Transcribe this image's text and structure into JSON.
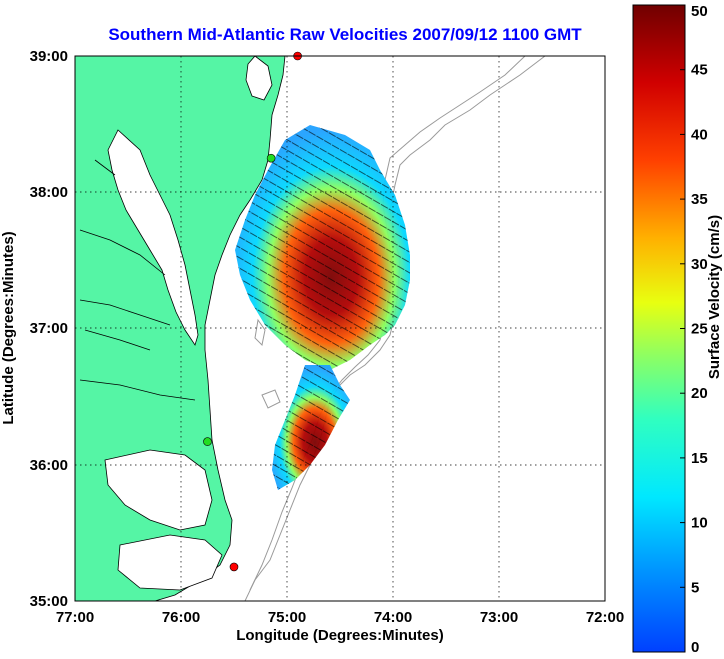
{
  "title": "Southern Mid-Atlantic Raw Velocities 2007/09/12 1100 GMT",
  "x_axis": {
    "label": "Longitude (Degrees:Minutes)",
    "ticks": [
      "77:00",
      "76:00",
      "75:00",
      "74:00",
      "73:00",
      "72:00"
    ]
  },
  "y_axis": {
    "label": "Latitude (Degrees:Minutes)",
    "ticks": [
      "39:00",
      "38:00",
      "37:00",
      "36:00",
      "35:00"
    ]
  },
  "colorbar": {
    "label": "Surface Velocity (cm/s)",
    "ticks": [
      "50",
      "45",
      "40",
      "35",
      "30",
      "25",
      "20",
      "15",
      "10",
      "5",
      "0"
    ],
    "min": 0,
    "max": 50
  },
  "colors": {
    "land": "#55f5a5",
    "title": "#0000ff",
    "bathymetry": "#9a9a9a"
  },
  "stations": [
    {
      "lon": 74.9,
      "lat": 39.0,
      "status": "red"
    },
    {
      "lon": 75.15,
      "lat": 38.25,
      "status": "green"
    },
    {
      "lon": 75.75,
      "lat": 36.17,
      "status": "green"
    },
    {
      "lon": 75.5,
      "lat": 35.25,
      "status": "red"
    }
  ]
}
